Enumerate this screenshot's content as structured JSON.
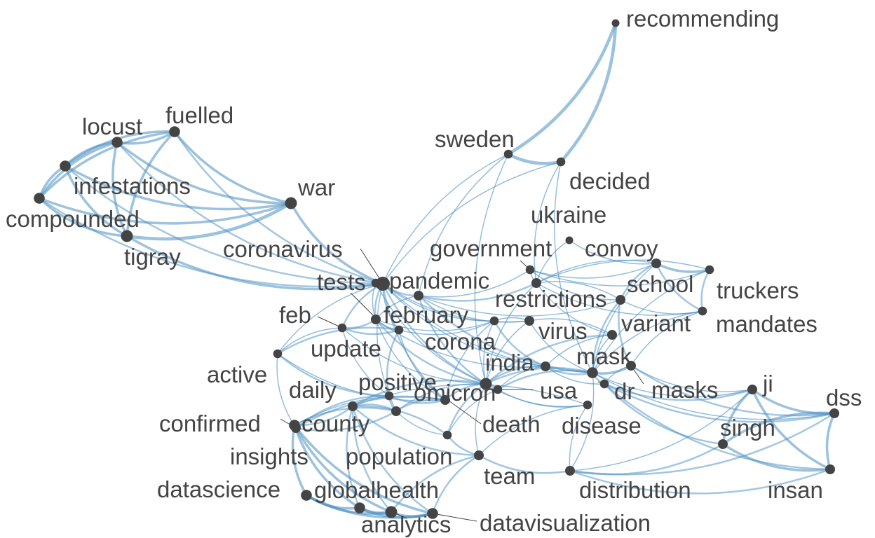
{
  "network": {
    "colors": {
      "edge": "#4a8fc3",
      "node": "#444444",
      "label": "#444444",
      "background": "#ffffff"
    },
    "nodes": [
      {
        "id": "recommending",
        "label": "recommending",
        "degree": 2
      },
      {
        "id": "sweden",
        "label": "sweden",
        "degree": 3
      },
      {
        "id": "decided",
        "label": "decided",
        "degree": 3
      },
      {
        "id": "ukraine",
        "label": "ukraine",
        "degree": 2
      },
      {
        "id": "fuelled",
        "label": "fuelled",
        "degree": 5
      },
      {
        "id": "locust",
        "label": "locust",
        "degree": 5
      },
      {
        "id": "infestations",
        "label": "infestations",
        "degree": 5
      },
      {
        "id": "compounded",
        "label": "compounded",
        "degree": 5
      },
      {
        "id": "tigray",
        "label": "tigray",
        "degree": 6
      },
      {
        "id": "war",
        "label": "war",
        "degree": 6
      },
      {
        "id": "coronavirus",
        "label": "coronavirus",
        "degree": 8
      },
      {
        "id": "government",
        "label": "government",
        "degree": 3
      },
      {
        "id": "convoy",
        "label": "convoy",
        "degree": 4
      },
      {
        "id": "truckers",
        "label": "truckers",
        "degree": 3
      },
      {
        "id": "tests",
        "label": "tests",
        "degree": 3
      },
      {
        "id": "pandemic",
        "label": "pandemic",
        "degree": 4
      },
      {
        "id": "school",
        "label": "school",
        "degree": 4
      },
      {
        "id": "restrictions",
        "label": "restrictions",
        "degree": 4
      },
      {
        "id": "mandates",
        "label": "mandates",
        "degree": 3
      },
      {
        "id": "feb",
        "label": "feb",
        "degree": 3
      },
      {
        "id": "february",
        "label": "february",
        "degree": 4
      },
      {
        "id": "variant",
        "label": "variant",
        "degree": 4
      },
      {
        "id": "virus",
        "label": "virus",
        "degree": 4
      },
      {
        "id": "update",
        "label": "update",
        "degree": 3
      },
      {
        "id": "corona",
        "label": "corona",
        "degree": 3
      },
      {
        "id": "active",
        "label": "active",
        "degree": 3
      },
      {
        "id": "mask",
        "label": "mask",
        "degree": 5
      },
      {
        "id": "india",
        "label": "india",
        "degree": 4
      },
      {
        "id": "masks",
        "label": "masks",
        "degree": 4
      },
      {
        "id": "daily",
        "label": "daily",
        "degree": 3
      },
      {
        "id": "positive",
        "label": "positive",
        "degree": 4
      },
      {
        "id": "omicron",
        "label": "omicron",
        "degree": 6
      },
      {
        "id": "usa",
        "label": "usa",
        "degree": 3
      },
      {
        "id": "dr",
        "label": "dr",
        "degree": 3
      },
      {
        "id": "ji",
        "label": "ji",
        "degree": 4
      },
      {
        "id": "dss",
        "label": "dss",
        "degree": 4
      },
      {
        "id": "confirmed",
        "label": "confirmed",
        "degree": 4
      },
      {
        "id": "county",
        "label": "county",
        "degree": 4
      },
      {
        "id": "death",
        "label": "death",
        "degree": 3
      },
      {
        "id": "disease",
        "label": "disease",
        "degree": 3
      },
      {
        "id": "singh",
        "label": "singh",
        "degree": 4
      },
      {
        "id": "insights",
        "label": "insights",
        "degree": 5
      },
      {
        "id": "population",
        "label": "population",
        "degree": 4
      },
      {
        "id": "team",
        "label": "team",
        "degree": 4
      },
      {
        "id": "distribution",
        "label": "distribution",
        "degree": 4
      },
      {
        "id": "insan",
        "label": "insan",
        "degree": 4
      },
      {
        "id": "datascience",
        "label": "datascience",
        "degree": 5
      },
      {
        "id": "globalhealth",
        "label": "globalhealth",
        "degree": 5
      },
      {
        "id": "analytics",
        "label": "analytics",
        "degree": 6
      },
      {
        "id": "datavisualization",
        "label": "datavisualization",
        "degree": 5
      }
    ],
    "edges": [
      [
        "sweden",
        "recommending",
        4
      ],
      [
        "decided",
        "recommending",
        4
      ],
      [
        "sweden",
        "decided",
        4
      ],
      [
        "locust",
        "fuelled",
        3
      ],
      [
        "locust",
        "infestations",
        3
      ],
      [
        "locust",
        "compounded",
        3
      ],
      [
        "locust",
        "tigray",
        3
      ],
      [
        "locust",
        "war",
        3
      ],
      [
        "fuelled",
        "infestations",
        3
      ],
      [
        "fuelled",
        "compounded",
        3
      ],
      [
        "fuelled",
        "tigray",
        3
      ],
      [
        "fuelled",
        "war",
        3
      ],
      [
        "infestations",
        "compounded",
        3
      ],
      [
        "infestations",
        "tigray",
        3
      ],
      [
        "infestations",
        "war",
        3
      ],
      [
        "compounded",
        "tigray",
        3
      ],
      [
        "compounded",
        "war",
        3
      ],
      [
        "tigray",
        "war",
        4
      ],
      [
        "war",
        "coronavirus",
        3
      ],
      [
        "tigray",
        "coronavirus",
        3
      ],
      [
        "locust",
        "coronavirus",
        2
      ],
      [
        "fuelled",
        "coronavirus",
        2
      ],
      [
        "infestations",
        "coronavirus",
        2
      ],
      [
        "compounded",
        "coronavirus",
        2
      ],
      [
        "sweden",
        "coronavirus",
        1
      ],
      [
        "decided",
        "coronavirus",
        1
      ],
      [
        "sweden",
        "omicron",
        1
      ],
      [
        "decided",
        "mask",
        1
      ],
      [
        "sweden",
        "pandemic",
        1
      ],
      [
        "decided",
        "restrictions",
        1
      ],
      [
        "coronavirus",
        "pandemic",
        2
      ],
      [
        "coronavirus",
        "tests",
        2
      ],
      [
        "coronavirus",
        "february",
        2
      ],
      [
        "coronavirus",
        "omicron",
        2
      ],
      [
        "coronavirus",
        "positive",
        2
      ],
      [
        "coronavirus",
        "india",
        1
      ],
      [
        "coronavirus",
        "feb",
        2
      ],
      [
        "coronavirus",
        "update",
        1
      ],
      [
        "coronavirus",
        "active",
        1
      ],
      [
        "coronavirus",
        "corona",
        1
      ],
      [
        "coronavirus",
        "virus",
        1
      ],
      [
        "coronavirus",
        "mask",
        1
      ],
      [
        "coronavirus",
        "county",
        1
      ],
      [
        "pandemic",
        "restrictions",
        2
      ],
      [
        "pandemic",
        "government",
        1
      ],
      [
        "pandemic",
        "omicron",
        2
      ],
      [
        "pandemic",
        "mask",
        2
      ],
      [
        "pandemic",
        "virus",
        1
      ],
      [
        "pandemic",
        "school",
        1
      ],
      [
        "pandemic",
        "february",
        1
      ],
      [
        "government",
        "convoy",
        1
      ],
      [
        "government",
        "restrictions",
        1
      ],
      [
        "government",
        "truckers",
        1
      ],
      [
        "government",
        "school",
        1
      ],
      [
        "convoy",
        "truckers",
        3
      ],
      [
        "convoy",
        "school",
        2
      ],
      [
        "convoy",
        "mandates",
        2
      ],
      [
        "convoy",
        "mask",
        1
      ],
      [
        "convoy",
        "restrictions",
        1
      ],
      [
        "truckers",
        "mandates",
        2
      ],
      [
        "truckers",
        "restrictions",
        1
      ],
      [
        "truckers",
        "mask",
        1
      ],
      [
        "school",
        "mask",
        2
      ],
      [
        "school",
        "masks",
        2
      ],
      [
        "school",
        "mandates",
        1
      ],
      [
        "school",
        "restrictions",
        1
      ],
      [
        "restrictions",
        "mandates",
        1
      ],
      [
        "restrictions",
        "variant",
        1
      ],
      [
        "restrictions",
        "omicron",
        1
      ],
      [
        "mandates",
        "mask",
        1
      ],
      [
        "mandates",
        "masks",
        1
      ],
      [
        "variant",
        "omicron",
        2
      ],
      [
        "variant",
        "mask",
        1
      ],
      [
        "variant",
        "virus",
        1
      ],
      [
        "variant",
        "india",
        1
      ],
      [
        "virus",
        "omicron",
        1
      ],
      [
        "virus",
        "corona",
        1
      ],
      [
        "virus",
        "mask",
        1
      ],
      [
        "feb",
        "february",
        2
      ],
      [
        "feb",
        "update",
        2
      ],
      [
        "feb",
        "active",
        1
      ],
      [
        "feb",
        "daily",
        1
      ],
      [
        "feb",
        "omicron",
        1
      ],
      [
        "february",
        "update",
        2
      ],
      [
        "february",
        "omicron",
        2
      ],
      [
        "february",
        "corona",
        1
      ],
      [
        "february",
        "india",
        1
      ],
      [
        "february",
        "positive",
        1
      ],
      [
        "update",
        "active",
        2
      ],
      [
        "update",
        "daily",
        2
      ],
      [
        "update",
        "positive",
        1
      ],
      [
        "update",
        "corona",
        1
      ],
      [
        "active",
        "daily",
        2
      ],
      [
        "active",
        "positive",
        1
      ],
      [
        "active",
        "confirmed",
        1
      ],
      [
        "corona",
        "india",
        2
      ],
      [
        "corona",
        "omicron",
        1
      ],
      [
        "corona",
        "positive",
        1
      ],
      [
        "india",
        "mask",
        2
      ],
      [
        "india",
        "omicron",
        2
      ],
      [
        "india",
        "usa",
        1
      ],
      [
        "india",
        "dr",
        1
      ],
      [
        "mask",
        "masks",
        3
      ],
      [
        "mask",
        "dr",
        2
      ],
      [
        "mask",
        "usa",
        2
      ],
      [
        "mask",
        "ji",
        1
      ],
      [
        "mask",
        "dss",
        1
      ],
      [
        "mask",
        "omicron",
        2
      ],
      [
        "masks",
        "dss",
        2
      ],
      [
        "masks",
        "ji",
        1
      ],
      [
        "masks",
        "dr",
        1
      ],
      [
        "dr",
        "ji",
        2
      ],
      [
        "dr",
        "singh",
        2
      ],
      [
        "dr",
        "insan",
        2
      ],
      [
        "dr",
        "dss",
        2
      ],
      [
        "ji",
        "dss",
        3
      ],
      [
        "ji",
        "singh",
        3
      ],
      [
        "ji",
        "insan",
        3
      ],
      [
        "dss",
        "singh",
        3
      ],
      [
        "dss",
        "insan",
        3
      ],
      [
        "singh",
        "insan",
        3
      ],
      [
        "usa",
        "omicron",
        2
      ],
      [
        "usa",
        "disease",
        1
      ],
      [
        "usa",
        "death",
        1
      ],
      [
        "omicron",
        "positive",
        2
      ],
      [
        "omicron",
        "death",
        2
      ],
      [
        "omicron",
        "county",
        1
      ],
      [
        "omicron",
        "population",
        2
      ],
      [
        "omicron",
        "team",
        1
      ],
      [
        "omicron",
        "disease",
        1
      ],
      [
        "daily",
        "positive",
        2
      ],
      [
        "daily",
        "confirmed",
        2
      ],
      [
        "daily",
        "county",
        2
      ],
      [
        "positive",
        "county",
        2
      ],
      [
        "positive",
        "confirmed",
        2
      ],
      [
        "positive",
        "insights",
        1
      ],
      [
        "confirmed",
        "county",
        2
      ],
      [
        "confirmed",
        "insights",
        2
      ],
      [
        "county",
        "insights",
        2
      ],
      [
        "county",
        "population",
        2
      ],
      [
        "county",
        "death",
        1
      ],
      [
        "death",
        "population",
        2
      ],
      [
        "death",
        "team",
        2
      ],
      [
        "disease",
        "distribution",
        1
      ],
      [
        "disease",
        "team",
        1
      ],
      [
        "disease",
        "population",
        1
      ],
      [
        "insights",
        "datascience",
        3
      ],
      [
        "insights",
        "globalhealth",
        3
      ],
      [
        "insights",
        "analytics",
        3
      ],
      [
        "insights",
        "datavisualization",
        3
      ],
      [
        "insights",
        "population",
        2
      ],
      [
        "population",
        "team",
        2
      ],
      [
        "population",
        "analytics",
        2
      ],
      [
        "population",
        "datavisualization",
        2
      ],
      [
        "population",
        "globalhealth",
        2
      ],
      [
        "team",
        "distribution",
        2
      ],
      [
        "team",
        "analytics",
        2
      ],
      [
        "team",
        "datavisualization",
        2
      ],
      [
        "distribution",
        "singh",
        2
      ],
      [
        "distribution",
        "dss",
        2
      ],
      [
        "distribution",
        "insan",
        2
      ],
      [
        "distribution",
        "ji",
        1
      ],
      [
        "distribution",
        "mask",
        1
      ],
      [
        "datascience",
        "globalhealth",
        3
      ],
      [
        "datascience",
        "analytics",
        3
      ],
      [
        "datascience",
        "datavisualization",
        3
      ],
      [
        "globalhealth",
        "analytics",
        4
      ],
      [
        "globalhealth",
        "datavisualization",
        3
      ],
      [
        "analytics",
        "datavisualization",
        3
      ],
      [
        "tests",
        "february",
        1
      ],
      [
        "tests",
        "omicron",
        1
      ],
      [
        "ukraine",
        "convoy",
        1
      ],
      [
        "ukraine",
        "restrictions",
        1
      ]
    ]
  }
}
